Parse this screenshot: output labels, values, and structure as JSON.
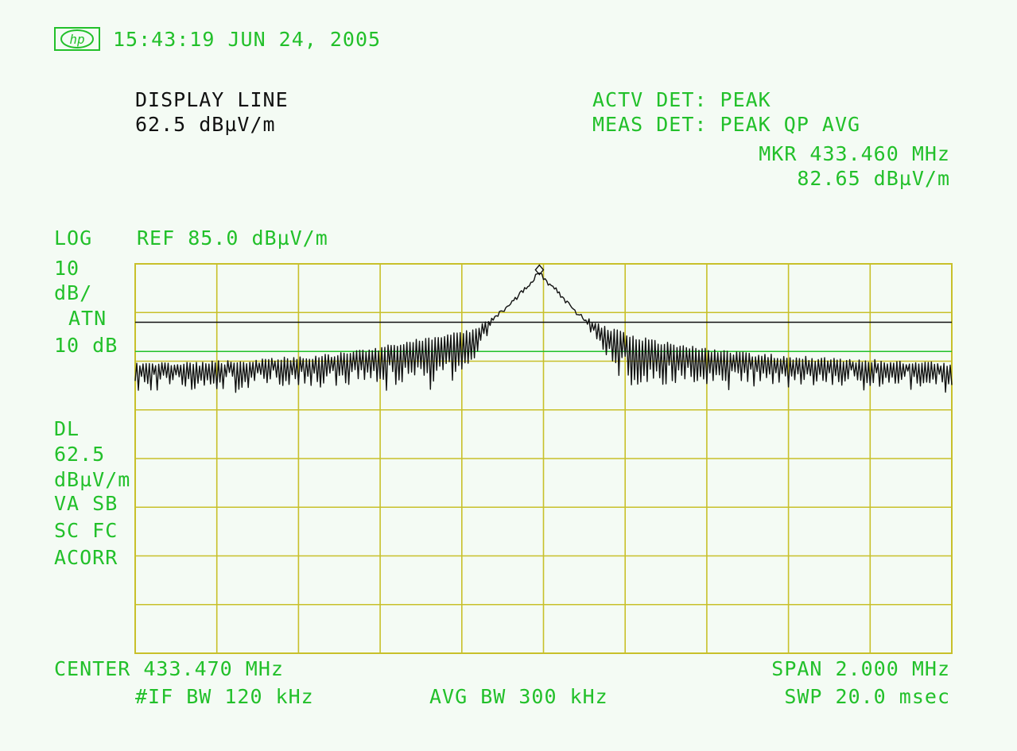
{
  "header": {
    "timestamp": "15:43:19 JUN 24, 2005",
    "logo_icon": "hp-logo-icon"
  },
  "display_line": {
    "title": "DISPLAY LINE",
    "value": "62.5 dBµV/m"
  },
  "detector": {
    "active": "ACTV DET: PEAK",
    "measure": "MEAS DET: PEAK QP AVG"
  },
  "marker": {
    "freq": "MKR 433.460 MHz",
    "level": "82.65 dBµV/m"
  },
  "left_annotations": {
    "scale": "LOG",
    "ref": "REF 85.0 dBµV/m",
    "div_value": "10",
    "div_unit": "dB/",
    "atn_label": "ATN",
    "atn_value": "10 dB",
    "dl_label": "DL",
    "dl_value": "62.5",
    "dl_unit": "dBµV/m",
    "va_sb": "VA SB",
    "sc_fc": "SC FC",
    "acorr": "ACORR"
  },
  "footer": {
    "center": "CENTER 433.470 MHz",
    "if_bw": "#IF BW 120 kHz",
    "avg_bw": "AVG BW 300 kHz",
    "span": "SPAN 2.000 MHz",
    "sweep": "SWP 20.0 msec"
  },
  "colors": {
    "background": "#f4fbf4",
    "annotation": "#22c02a",
    "grid": "#c8c02a",
    "trace": "#111111",
    "display_line": "#22c02a",
    "threshold_line": "#111111"
  },
  "chart_data": {
    "type": "line",
    "x_unit": "MHz",
    "y_unit": "dBµV/m",
    "xlim": [
      432.47,
      434.47
    ],
    "ylim": [
      -15,
      85
    ],
    "x_divisions": 10,
    "y_divisions": 8,
    "reference_level": 85.0,
    "scale_per_div": 10,
    "display_line": 62.5,
    "threshold_line": 70.0,
    "marker": {
      "x": 433.46,
      "y": 82.65
    },
    "series": [
      {
        "values_envelope": [
          [
            432.47,
            59.5
          ],
          [
            432.6,
            59.8
          ],
          [
            432.75,
            60.5
          ],
          [
            432.9,
            61.5
          ],
          [
            433.0,
            62.5
          ],
          [
            433.1,
            64.5
          ],
          [
            433.2,
            66.5
          ],
          [
            433.3,
            68.5
          ],
          [
            433.38,
            74.0
          ],
          [
            433.43,
            80.0
          ],
          [
            433.46,
            82.65
          ],
          [
            433.5,
            79.0
          ],
          [
            433.55,
            73.0
          ],
          [
            433.6,
            70.0
          ],
          [
            433.7,
            66.5
          ],
          [
            433.8,
            64.5
          ],
          [
            433.9,
            63.0
          ],
          [
            434.0,
            62.0
          ],
          [
            434.1,
            61.3
          ],
          [
            434.2,
            60.8
          ],
          [
            434.3,
            60.5
          ],
          [
            434.4,
            60.0
          ],
          [
            434.47,
            59.5
          ]
        ],
        "noise_floor": 51.5
      }
    ]
  }
}
